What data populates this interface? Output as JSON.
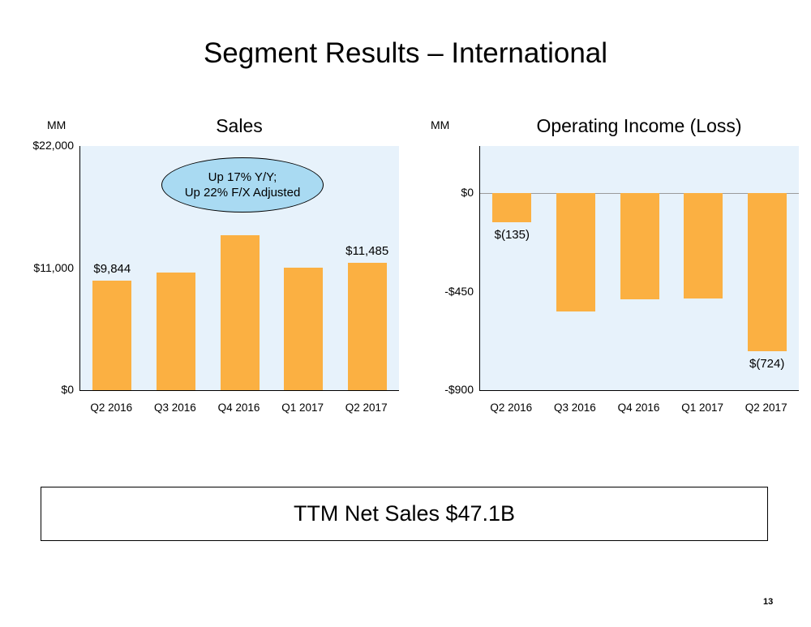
{
  "slide": {
    "title": "Segment Results – International",
    "footer_box_text": "TTM Net Sales $47.1B",
    "page_number": "13"
  },
  "colors": {
    "bar_fill": "#FBB042",
    "plot_background": "#E7F2FB",
    "callout_fill": "#A9DAF2",
    "axis_line": "#000000",
    "zero_gridline": "#9B9B9B"
  },
  "chart_data": [
    {
      "type": "bar",
      "title": "Sales",
      "unit_label": "MM",
      "categories": [
        "Q2 2016",
        "Q3 2016",
        "Q4 2016",
        "Q1 2017",
        "Q2 2017"
      ],
      "values": [
        9844,
        10600,
        13950,
        11050,
        11485
      ],
      "ylim": [
        0,
        22000
      ],
      "yticks": [
        22000,
        11000,
        0
      ],
      "ytick_labels": [
        "$22,000",
        "$11,000",
        "$0"
      ],
      "data_labels": {
        "0": "$9,844",
        "4": "$11,485"
      },
      "annotation": {
        "lines": [
          "Up 17% Y/Y;",
          "Up 22% F/X Adjusted"
        ]
      },
      "grid": false,
      "legend_position": "none"
    },
    {
      "type": "bar",
      "title": "Operating Income (Loss)",
      "unit_label": "MM",
      "categories": [
        "Q2 2016",
        "Q3 2016",
        "Q4 2016",
        "Q1 2017",
        "Q2 2017"
      ],
      "values": [
        -135,
        -540,
        -485,
        -480,
        -724
      ],
      "ylim": [
        -900,
        215
      ],
      "yticks": [
        0,
        -450,
        -900
      ],
      "ytick_labels": [
        "$0",
        "-$450",
        "-$900"
      ],
      "data_labels": {
        "0": "$(135)",
        "4": "$(724)"
      },
      "grid": false,
      "legend_position": "none"
    }
  ]
}
